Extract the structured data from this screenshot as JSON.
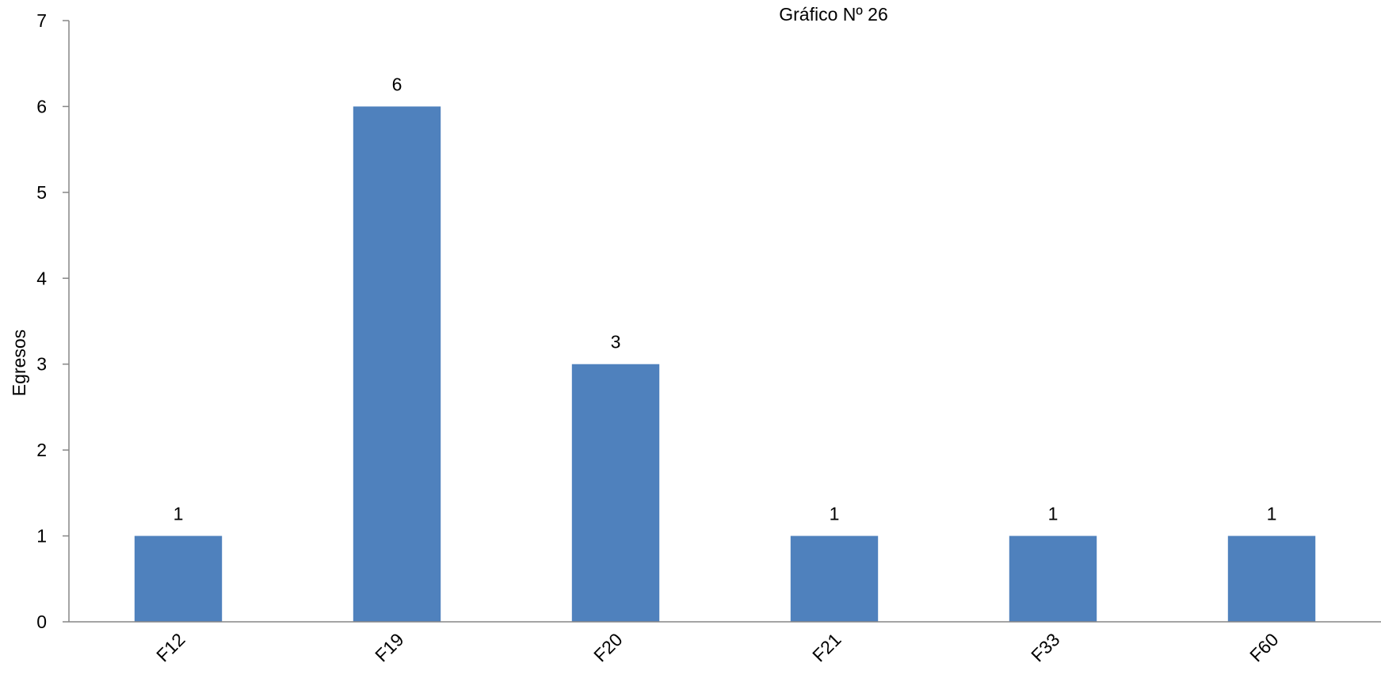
{
  "chart_data": {
    "type": "bar",
    "title": "Gráfico Nº 26",
    "xlabel": "",
    "ylabel": "Egresos",
    "categories": [
      "F12",
      "F19",
      "F20",
      "F21",
      "F33",
      "F60"
    ],
    "series": [
      {
        "values": [
          1,
          6,
          3,
          1,
          1,
          1
        ],
        "color": "#4f81bd"
      }
    ],
    "ylim": [
      0,
      7
    ],
    "yticks": [
      0,
      1,
      2,
      3,
      4,
      5,
      6,
      7
    ],
    "grid": false,
    "legend": "none",
    "data_labels": true
  }
}
